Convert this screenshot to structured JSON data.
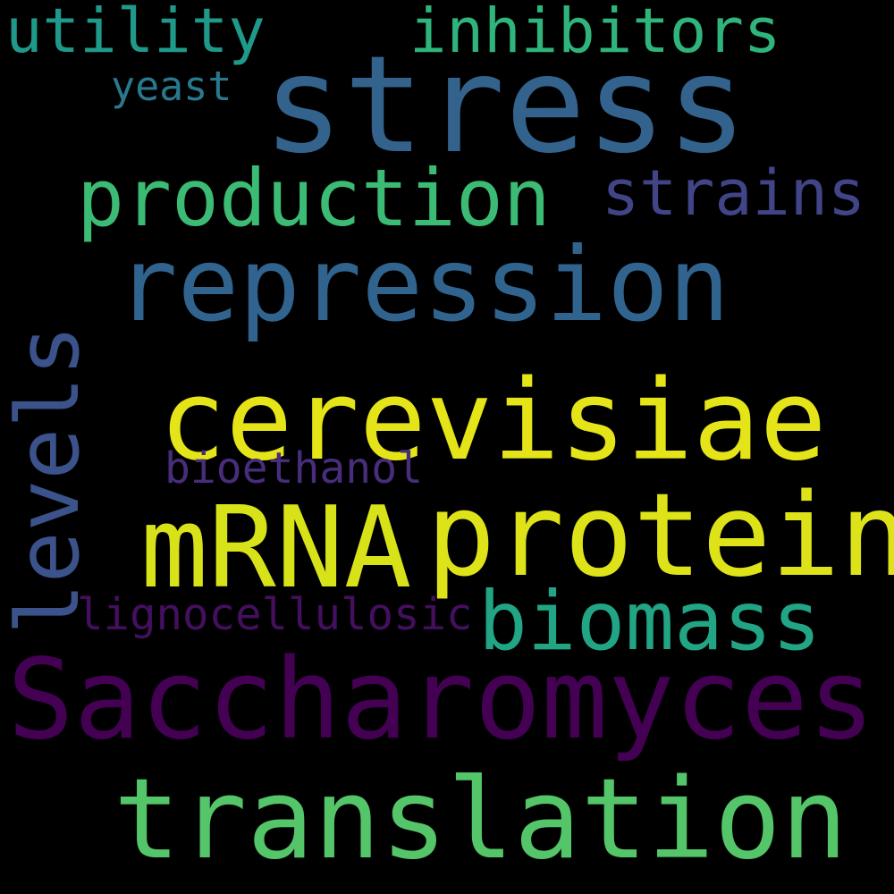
{
  "words": [
    {
      "text": "stress",
      "color": "#33638d"
    },
    {
      "text": "utility",
      "color": "#1f9a8a"
    },
    {
      "text": "inhibitors",
      "color": "#2fb47c"
    },
    {
      "text": "yeast",
      "color": "#2a788e"
    },
    {
      "text": "production",
      "color": "#3cbb75"
    },
    {
      "text": "strains",
      "color": "#414487"
    },
    {
      "text": "repression",
      "color": "#30638e"
    },
    {
      "text": "levels",
      "color": "#3b528b"
    },
    {
      "text": "cerevisiae",
      "color": "#e4e419"
    },
    {
      "text": "bioethanol",
      "color": "#472d7b"
    },
    {
      "text": "mRNA",
      "color": "#d8e219"
    },
    {
      "text": "protein",
      "color": "#dde318"
    },
    {
      "text": "lignocellulosic",
      "color": "#440f5f"
    },
    {
      "text": "biomass",
      "color": "#21a585"
    },
    {
      "text": "Saccharomyces",
      "color": "#440154"
    },
    {
      "text": "translation",
      "color": "#54c568"
    }
  ]
}
